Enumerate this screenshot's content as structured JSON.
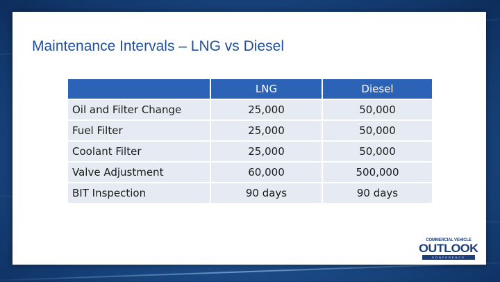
{
  "slide": {
    "title": "Maintenance Intervals – LNG vs Diesel"
  },
  "table": {
    "headers": [
      "",
      "LNG",
      "Diesel"
    ],
    "rows": [
      {
        "label": "Oil and Filter Change",
        "lng": "25,000",
        "diesel": "50,000"
      },
      {
        "label": "Fuel Filter",
        "lng": "25,000",
        "diesel": "50,000"
      },
      {
        "label": "Coolant Filter",
        "lng": "25,000",
        "diesel": "50,000"
      },
      {
        "label": "Valve Adjustment",
        "lng": "60,000",
        "diesel": "500,000"
      },
      {
        "label": "BIT Inspection",
        "lng": "90 days",
        "diesel": "90 days"
      }
    ]
  },
  "logo": {
    "top_text": "COMMERCIAL VEHICLE",
    "main_text": "OUTLOOK",
    "bottom_text": "CONFERENCE"
  },
  "colors": {
    "title": "#1f4f9a",
    "header_bg": "#2d63b6",
    "row_bg": "#e6ebf3",
    "background": "#1d4f8e"
  }
}
